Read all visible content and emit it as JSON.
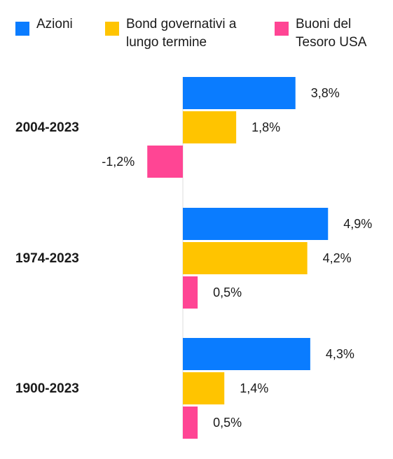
{
  "colors": {
    "azioni": "#0A7CFF",
    "bond": "#FFC400",
    "buoni": "#FF4594",
    "axis": "#dddddd"
  },
  "legend": [
    {
      "label": "Azioni",
      "color": "#0A7CFF"
    },
    {
      "label": "Bond governativi a\nlungo termine",
      "color": "#FFC400"
    },
    {
      "label": "Buoni del\nTesoro USA",
      "color": "#FF4594"
    }
  ],
  "chart_data": {
    "type": "bar",
    "orientation": "horizontal",
    "categories": [
      "2004-2023",
      "1974-2023",
      "1900-2023"
    ],
    "series": [
      {
        "name": "Azioni",
        "color": "#0A7CFF",
        "values": [
          3.8,
          4.9,
          4.3
        ],
        "labels": [
          "3,8%",
          "4,9%",
          "4,3%"
        ]
      },
      {
        "name": "Bond governativi a lungo termine",
        "color": "#FFC400",
        "values": [
          1.8,
          4.2,
          1.4
        ],
        "labels": [
          "1,8%",
          "4,2%",
          "1,4%"
        ]
      },
      {
        "name": "Buoni del Tesoro USA",
        "color": "#FF4594",
        "values": [
          -1.2,
          0.5,
          0.5
        ],
        "labels": [
          "-1,2%",
          "0,5%",
          "0,5%"
        ]
      }
    ],
    "xlim": [
      -1.2,
      4.9
    ],
    "grid": false,
    "legend_position": "top"
  }
}
